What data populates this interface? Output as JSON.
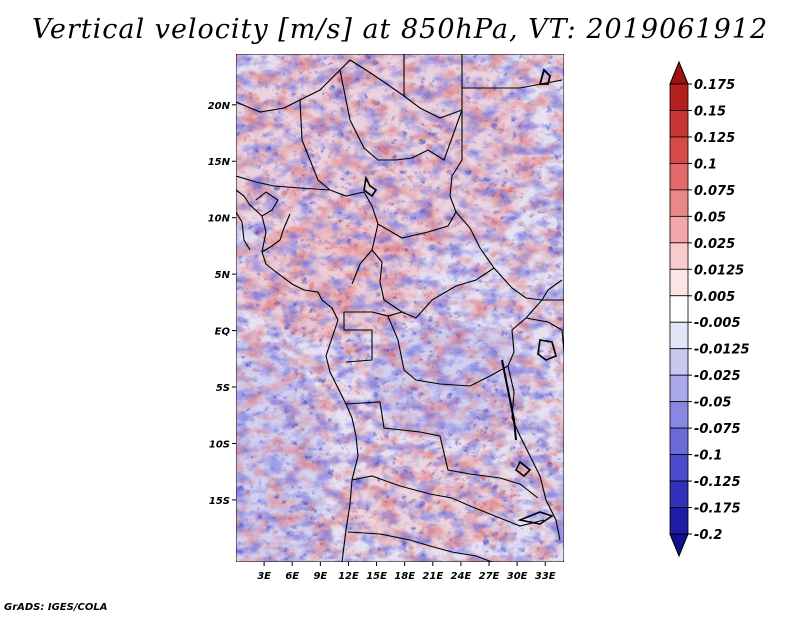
{
  "title": "Vertical velocity [m/s] at 850hPa, VT: 2019061912",
  "credit": "GrADS: IGES/COLA",
  "map": {
    "lat_labels": [
      "20N",
      "15N",
      "10N",
      "5N",
      "EQ",
      "5S",
      "10S",
      "15S"
    ],
    "lon_labels": [
      "3E",
      "6E",
      "9E",
      "12E",
      "15E",
      "18E",
      "21E",
      "24E",
      "27E",
      "30E",
      "33E"
    ],
    "lat_range": [
      -20.5,
      24.5
    ],
    "lon_range": [
      0,
      35
    ],
    "field": "vertical velocity",
    "units": "m/s",
    "level": "850hPa"
  },
  "colorbar": {
    "labels": [
      "0.175",
      "0.15",
      "0.125",
      "0.1",
      "0.075",
      "0.05",
      "0.025",
      "0.0125",
      "0.005",
      "-0.005",
      "-0.0125",
      "-0.025",
      "-0.05",
      "-0.075",
      "-0.1",
      "-0.125",
      "-0.175",
      "-0.2"
    ],
    "colors": [
      "#a01010",
      "#b42020",
      "#c83535",
      "#d84a4a",
      "#e26a6a",
      "#ea8888",
      "#f2a8a8",
      "#f8cccc",
      "#fbe6e6",
      "#ffffff",
      "#e4e4f8",
      "#c8c8f0",
      "#a8a8ea",
      "#8888e2",
      "#6a6ad8",
      "#4a4acc",
      "#3030b8",
      "#1c1ca4",
      "#10108c"
    ]
  }
}
